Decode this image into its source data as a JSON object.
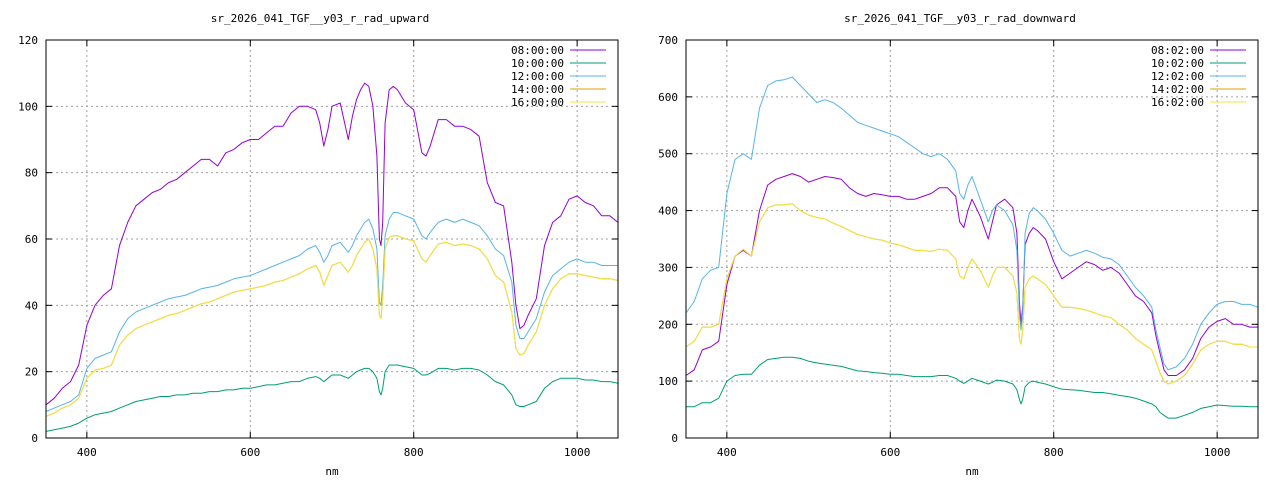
{
  "chart_data": [
    {
      "type": "line",
      "title": "sr_2026_041_TGF__y03_r_rad_upward",
      "xlabel": "nm",
      "ylabel": "",
      "xlim": [
        350,
        1050
      ],
      "ylim": [
        0,
        120
      ],
      "xticks": [
        400,
        600,
        800,
        1000
      ],
      "yticks": [
        0,
        20,
        40,
        60,
        80,
        100,
        120
      ],
      "grid": true,
      "legend": "top-right",
      "x": [
        350,
        360,
        370,
        380,
        390,
        400,
        410,
        420,
        430,
        440,
        450,
        460,
        470,
        480,
        490,
        500,
        510,
        520,
        530,
        540,
        550,
        560,
        570,
        580,
        590,
        600,
        610,
        620,
        630,
        640,
        650,
        660,
        670,
        680,
        685,
        690,
        695,
        700,
        710,
        720,
        725,
        730,
        735,
        740,
        745,
        750,
        755,
        758,
        760,
        762,
        765,
        770,
        775,
        780,
        790,
        800,
        810,
        815,
        820,
        830,
        840,
        850,
        860,
        870,
        880,
        890,
        900,
        910,
        920,
        925,
        930,
        935,
        940,
        950,
        960,
        970,
        980,
        990,
        1000,
        1010,
        1020,
        1030,
        1040,
        1050
      ],
      "series": [
        {
          "name": "08:00:00",
          "color": "#9400d3",
          "values": [
            10,
            12,
            15,
            17,
            22,
            34,
            40,
            43,
            45,
            58,
            65,
            70,
            72,
            74,
            75,
            77,
            78,
            80,
            82,
            84,
            84,
            82,
            86,
            87,
            89,
            90,
            90,
            92,
            94,
            94,
            98,
            100,
            100,
            99,
            95,
            88,
            93,
            100,
            101,
            90,
            97,
            102,
            105,
            107,
            106,
            100,
            85,
            60,
            58,
            65,
            95,
            105,
            106,
            105,
            101,
            99,
            86,
            85,
            88,
            96,
            96,
            94,
            94,
            93,
            91,
            77,
            71,
            70,
            53,
            40,
            33,
            34,
            37,
            42,
            58,
            65,
            67,
            72,
            73,
            71,
            70,
            67,
            67,
            65
          ]
        },
        {
          "name": "10:00:00",
          "color": "#009e73",
          "values": [
            2,
            2.5,
            3,
            3.5,
            4.5,
            6,
            7,
            7.5,
            8,
            9,
            10,
            11,
            11.5,
            12,
            12.5,
            12.5,
            13,
            13,
            13.5,
            13.5,
            14,
            14,
            14.5,
            14.5,
            15,
            15,
            15.5,
            16,
            16,
            16.5,
            17,
            17,
            18,
            18.5,
            18,
            17,
            18,
            19,
            19,
            18,
            19,
            20,
            20.5,
            21,
            21,
            20,
            18,
            14,
            13,
            15,
            20,
            22,
            22,
            22,
            21.5,
            21,
            19,
            19,
            19.5,
            21,
            21,
            20.5,
            21,
            21,
            20.5,
            19,
            17,
            16,
            13,
            10,
            9.5,
            9.5,
            10,
            11,
            15,
            17,
            18,
            18,
            18,
            17.5,
            17.5,
            17,
            17,
            16.5
          ]
        },
        {
          "name": "12:00:00",
          "color": "#56b4e9",
          "values": [
            8,
            9,
            10,
            11,
            13,
            21,
            24,
            25,
            26,
            32,
            36,
            38,
            39,
            40,
            41,
            42,
            42.5,
            43,
            44,
            45,
            45.5,
            46,
            47,
            48,
            48.5,
            49,
            50,
            51,
            52,
            53,
            54,
            55,
            57,
            58,
            56,
            53,
            55,
            58,
            59,
            56,
            58,
            61,
            63,
            65,
            66,
            63,
            57,
            41,
            40,
            46,
            61,
            66,
            68,
            68,
            67,
            66,
            61,
            60,
            62,
            65,
            66,
            65,
            66,
            65,
            64,
            61,
            57,
            55,
            47,
            34,
            30,
            30,
            32,
            36,
            44,
            49,
            51,
            53,
            54,
            53,
            53,
            52,
            52,
            52
          ]
        },
        {
          "name": "14:00:00",
          "color": "#e69f00",
          "values": [
            6.5,
            7.5,
            9,
            10,
            12,
            18,
            20.5,
            21,
            22,
            28,
            31,
            33,
            34,
            35,
            36,
            37,
            37.5,
            38.5,
            39.5,
            40.5,
            41,
            42,
            43,
            44,
            44.5,
            45,
            45.5,
            46,
            47,
            47.5,
            48.5,
            49.5,
            51,
            52,
            50,
            46,
            49,
            52,
            53,
            50,
            52,
            55,
            57,
            59,
            60,
            57,
            51,
            37,
            36,
            42,
            57,
            60.5,
            61,
            61,
            60,
            59.5,
            54,
            53,
            55,
            58.5,
            59,
            58,
            58.5,
            58,
            57,
            54,
            49,
            47,
            38,
            27,
            25,
            25.5,
            28,
            32,
            40,
            45,
            48,
            49.5,
            49.5,
            49,
            48.5,
            48,
            48,
            47.5
          ]
        },
        {
          "name": "16:00:00",
          "color": "#f0e442",
          "values": [
            6.5,
            7.5,
            9,
            10,
            12,
            18,
            20.5,
            21,
            22,
            28,
            31,
            33,
            34,
            35,
            36,
            37,
            37.5,
            38.5,
            39.5,
            40.5,
            41,
            42,
            43,
            44,
            44.5,
            45,
            45.5,
            46,
            47,
            47.5,
            48.5,
            49.5,
            51,
            52,
            50,
            46,
            49,
            52,
            53,
            50,
            52,
            55,
            57,
            59,
            60,
            57,
            51,
            37,
            36,
            42,
            57,
            60.5,
            61,
            61,
            60,
            59.5,
            54,
            53,
            55,
            58.5,
            59,
            58,
            58.5,
            58,
            57,
            54,
            49,
            47,
            38,
            27,
            25,
            25.5,
            28,
            32,
            40,
            45,
            48,
            49.5,
            49.5,
            49,
            48.5,
            48,
            48,
            47.5
          ]
        }
      ]
    },
    {
      "type": "line",
      "title": "sr_2026_041_TGF__y03_r_rad_downward",
      "xlabel": "nm",
      "ylabel": "",
      "xlim": [
        350,
        1050
      ],
      "ylim": [
        0,
        700
      ],
      "xticks": [
        400,
        600,
        800,
        1000
      ],
      "yticks": [
        0,
        100,
        200,
        300,
        400,
        500,
        600,
        700
      ],
      "grid": true,
      "legend": "top-right",
      "x": [
        350,
        360,
        370,
        380,
        390,
        400,
        410,
        420,
        430,
        440,
        450,
        460,
        470,
        480,
        490,
        500,
        510,
        520,
        530,
        540,
        550,
        560,
        570,
        580,
        590,
        600,
        610,
        620,
        630,
        640,
        650,
        660,
        670,
        680,
        685,
        690,
        695,
        700,
        710,
        720,
        725,
        730,
        740,
        750,
        755,
        758,
        760,
        762,
        765,
        770,
        775,
        780,
        790,
        800,
        810,
        820,
        830,
        840,
        850,
        860,
        870,
        880,
        890,
        900,
        910,
        920,
        925,
        930,
        935,
        940,
        950,
        960,
        970,
        980,
        990,
        1000,
        1010,
        1020,
        1030,
        1040,
        1050
      ],
      "series": [
        {
          "name": "08:02:00",
          "color": "#9400d3",
          "values": [
            110,
            120,
            155,
            160,
            170,
            270,
            320,
            330,
            320,
            400,
            445,
            455,
            460,
            465,
            460,
            450,
            455,
            460,
            458,
            455,
            440,
            430,
            425,
            430,
            428,
            425,
            425,
            420,
            420,
            425,
            430,
            440,
            440,
            425,
            380,
            370,
            400,
            420,
            390,
            350,
            380,
            410,
            420,
            405,
            360,
            240,
            200,
            230,
            340,
            360,
            370,
            365,
            350,
            310,
            280,
            290,
            300,
            310,
            305,
            295,
            300,
            290,
            270,
            250,
            240,
            220,
            180,
            150,
            120,
            110,
            110,
            120,
            140,
            175,
            195,
            205,
            210,
            200,
            200,
            195,
            195
          ]
        },
        {
          "name": "10:02:00",
          "color": "#009e73",
          "values": [
            55,
            55,
            62,
            62,
            70,
            100,
            110,
            112,
            112,
            128,
            138,
            140,
            142,
            142,
            140,
            135,
            132,
            130,
            128,
            126,
            122,
            118,
            117,
            115,
            114,
            112,
            112,
            110,
            108,
            108,
            108,
            110,
            110,
            105,
            100,
            96,
            100,
            105,
            100,
            95,
            98,
            102,
            100,
            95,
            85,
            68,
            60,
            68,
            90,
            98,
            100,
            98,
            95,
            90,
            86,
            85,
            84,
            82,
            80,
            80,
            78,
            75,
            73,
            70,
            65,
            60,
            55,
            45,
            40,
            35,
            35,
            40,
            45,
            52,
            55,
            58,
            57,
            56,
            56,
            55,
            55
          ]
        },
        {
          "name": "12:02:00",
          "color": "#56b4e9",
          "values": [
            220,
            240,
            280,
            295,
            300,
            430,
            490,
            500,
            490,
            580,
            620,
            628,
            630,
            635,
            620,
            605,
            590,
            595,
            590,
            580,
            568,
            555,
            550,
            545,
            540,
            535,
            530,
            520,
            510,
            500,
            495,
            500,
            490,
            470,
            430,
            420,
            445,
            460,
            420,
            380,
            400,
            410,
            400,
            375,
            330,
            220,
            190,
            220,
            360,
            395,
            405,
            400,
            385,
            360,
            330,
            320,
            325,
            330,
            325,
            318,
            315,
            305,
            285,
            265,
            250,
            230,
            190,
            160,
            130,
            120,
            125,
            140,
            165,
            200,
            220,
            235,
            240,
            240,
            235,
            235,
            230
          ]
        },
        {
          "name": "14:02:00",
          "color": "#e69f00",
          "values": [
            160,
            170,
            195,
            195,
            200,
            280,
            320,
            332,
            320,
            380,
            405,
            410,
            410,
            412,
            400,
            392,
            388,
            385,
            378,
            372,
            365,
            358,
            354,
            350,
            348,
            343,
            340,
            335,
            330,
            330,
            328,
            332,
            330,
            315,
            285,
            280,
            300,
            315,
            295,
            265,
            285,
            300,
            300,
            285,
            255,
            175,
            165,
            190,
            265,
            280,
            285,
            280,
            270,
            250,
            230,
            230,
            228,
            225,
            220,
            215,
            212,
            200,
            190,
            175,
            165,
            155,
            135,
            115,
            100,
            95,
            100,
            110,
            130,
            155,
            165,
            170,
            170,
            165,
            165,
            160,
            160
          ]
        },
        {
          "name": "16:02:00",
          "color": "#f0e442",
          "values": [
            160,
            170,
            195,
            195,
            200,
            280,
            320,
            332,
            320,
            380,
            405,
            410,
            410,
            412,
            400,
            392,
            388,
            385,
            378,
            372,
            365,
            358,
            354,
            350,
            348,
            343,
            340,
            335,
            330,
            330,
            328,
            332,
            330,
            315,
            285,
            280,
            300,
            315,
            295,
            265,
            285,
            300,
            300,
            285,
            255,
            175,
            165,
            190,
            265,
            280,
            285,
            280,
            270,
            250,
            230,
            230,
            228,
            225,
            220,
            215,
            212,
            200,
            190,
            175,
            165,
            155,
            135,
            115,
            100,
            95,
            100,
            110,
            130,
            155,
            165,
            170,
            170,
            165,
            165,
            160,
            160
          ]
        }
      ]
    }
  ]
}
